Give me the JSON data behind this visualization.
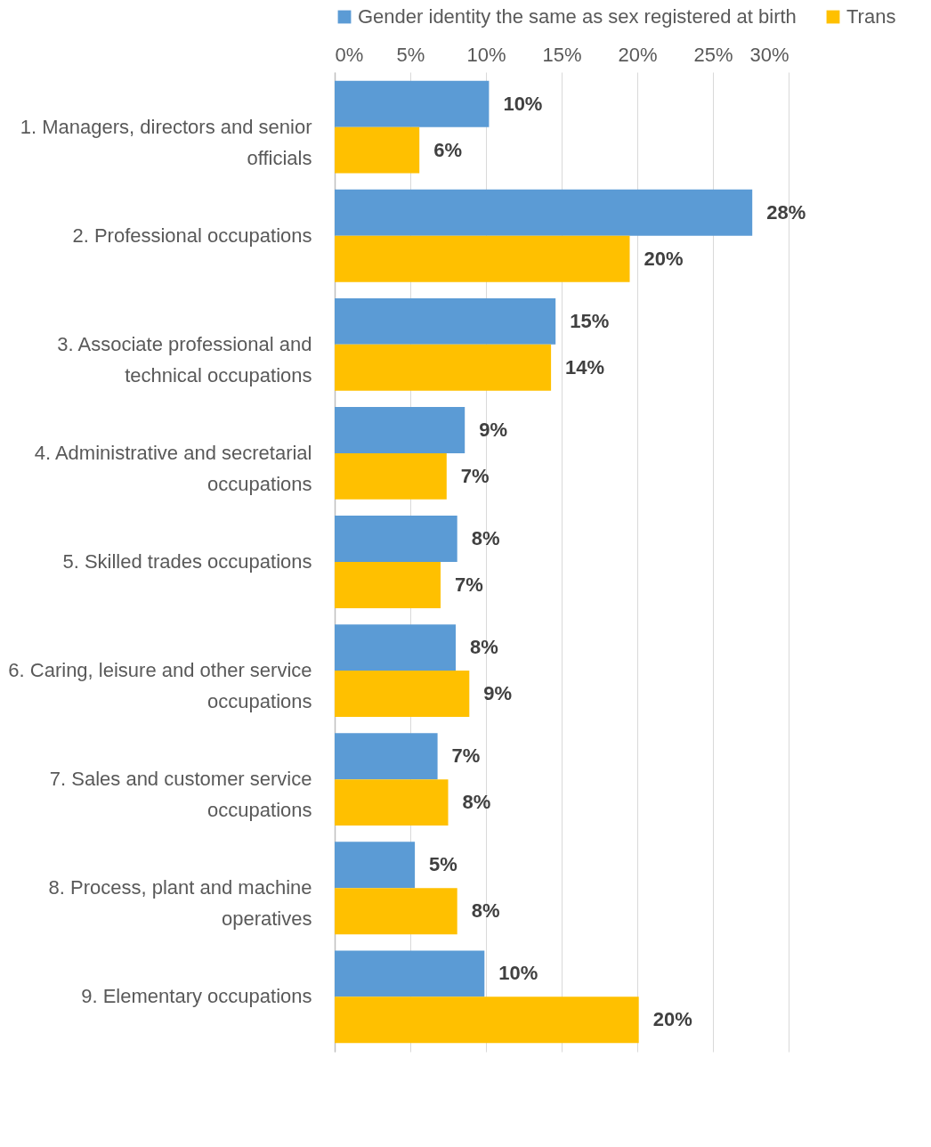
{
  "chart_data": {
    "type": "bar",
    "orientation": "horizontal",
    "categories": [
      "1. Managers, directors and senior officials",
      "2. Professional occupations",
      "3. Associate professional and technical occupations",
      "4. Administrative and secretarial occupations",
      "5. Skilled trades occupations",
      "6. Caring, leisure and other service occupations",
      "7. Sales and customer service occupations",
      "8. Process, plant and machine operatives",
      "9. Elementary occupations"
    ],
    "series": [
      {
        "name": "Gender identity the same as sex registered at birth",
        "color": "#5b9bd5",
        "values": [
          10.2,
          27.6,
          14.6,
          8.6,
          8.1,
          8.0,
          6.8,
          5.3,
          9.9
        ],
        "value_labels": [
          "10%",
          "28%",
          "15%",
          "9%",
          "8%",
          "8%",
          "7%",
          "5%",
          "10%"
        ]
      },
      {
        "name": "Trans",
        "color": "#ffc000",
        "values": [
          5.6,
          19.5,
          14.3,
          7.4,
          7.0,
          8.9,
          7.5,
          8.1,
          20.1
        ],
        "value_labels": [
          "6%",
          "20%",
          "14%",
          "7%",
          "7%",
          "9%",
          "8%",
          "8%",
          "20%"
        ]
      }
    ],
    "xlim": [
      0,
      30
    ],
    "xticks": [
      {
        "value": 0,
        "label": "0%"
      },
      {
        "value": 5,
        "label": "5%"
      },
      {
        "value": 10,
        "label": "10%"
      },
      {
        "value": 15,
        "label": "15%"
      },
      {
        "value": 20,
        "label": "20%"
      },
      {
        "value": 25,
        "label": "25%"
      },
      {
        "value": 30,
        "label": "30%"
      }
    ],
    "grid": "x",
    "legend": "top"
  }
}
